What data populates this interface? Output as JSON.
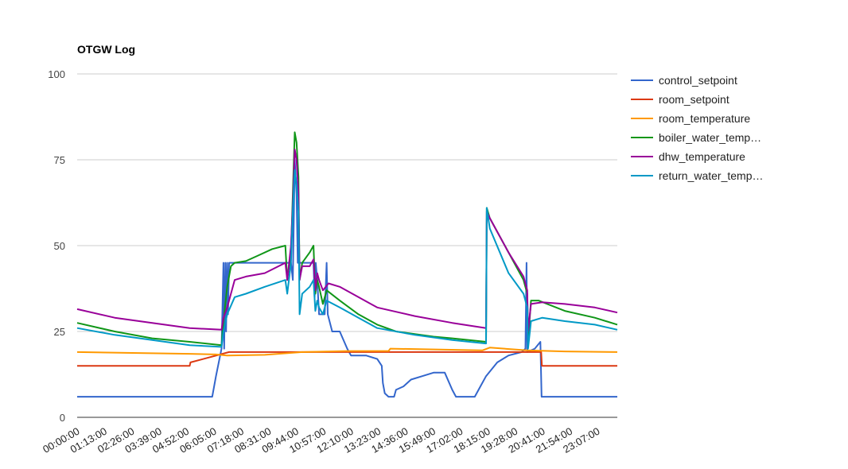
{
  "chart_data": {
    "type": "line",
    "title": "OTGW Log",
    "xlabel": "",
    "ylabel": "",
    "ylim": [
      0,
      100
    ],
    "yticks": [
      0,
      25,
      50,
      75,
      100
    ],
    "xlim": [
      0,
      1440
    ],
    "x_unit": "minutes since 00:00:00",
    "x_tick_labels": [
      "00:00:00",
      "01:13:00",
      "02:26:00",
      "03:39:00",
      "04:52:00",
      "06:05:00",
      "07:18:00",
      "08:31:00",
      "09:44:00",
      "10:57:00",
      "12:10:00",
      "13:23:00",
      "14:36:00",
      "15:49:00",
      "17:02:00",
      "18:15:00",
      "19:28:00",
      "20:41:00",
      "21:54:00",
      "23:07:00"
    ],
    "x_tick_values": [
      0,
      73,
      146,
      219,
      292,
      365,
      438,
      511,
      584,
      657,
      730,
      803,
      876,
      949,
      1022,
      1095,
      1168,
      1241,
      1314,
      1387
    ],
    "grid": true,
    "legend_position": "right",
    "series": [
      {
        "name": "control_setpoint",
        "color": "#3366cc",
        "points": [
          [
            0,
            6
          ],
          [
            360,
            6
          ],
          [
            370,
            12
          ],
          [
            385,
            20
          ],
          [
            390,
            45
          ],
          [
            392,
            20
          ],
          [
            395,
            45
          ],
          [
            397,
            25
          ],
          [
            400,
            45
          ],
          [
            402,
            30
          ],
          [
            405,
            45
          ],
          [
            420,
            45
          ],
          [
            430,
            45
          ],
          [
            500,
            45
          ],
          [
            560,
            45
          ],
          [
            570,
            45
          ],
          [
            575,
            40
          ],
          [
            578,
            60
          ],
          [
            580,
            75
          ],
          [
            585,
            65
          ],
          [
            588,
            45
          ],
          [
            630,
            45
          ],
          [
            633,
            35
          ],
          [
            636,
            45
          ],
          [
            640,
            40
          ],
          [
            645,
            30
          ],
          [
            660,
            30
          ],
          [
            665,
            45
          ],
          [
            668,
            30
          ],
          [
            680,
            25
          ],
          [
            700,
            25
          ],
          [
            720,
            20
          ],
          [
            730,
            18
          ],
          [
            770,
            18
          ],
          [
            800,
            17
          ],
          [
            812,
            15
          ],
          [
            815,
            10
          ],
          [
            820,
            7
          ],
          [
            830,
            6
          ],
          [
            845,
            6
          ],
          [
            850,
            8
          ],
          [
            870,
            9
          ],
          [
            890,
            11
          ],
          [
            920,
            12
          ],
          [
            950,
            13
          ],
          [
            980,
            13
          ],
          [
            1000,
            8
          ],
          [
            1010,
            6
          ],
          [
            1060,
            6
          ],
          [
            1075,
            9
          ],
          [
            1090,
            12
          ],
          [
            1120,
            16
          ],
          [
            1150,
            18
          ],
          [
            1185,
            19
          ],
          [
            1195,
            20
          ],
          [
            1198,
            45
          ],
          [
            1200,
            19
          ],
          [
            1220,
            20
          ],
          [
            1235,
            22
          ],
          [
            1238,
            6
          ],
          [
            1440,
            6
          ]
        ]
      },
      {
        "name": "room_setpoint",
        "color": "#dc3912",
        "points": [
          [
            0,
            15
          ],
          [
            300,
            15
          ],
          [
            302,
            16
          ],
          [
            405,
            19
          ],
          [
            1237,
            19
          ],
          [
            1239,
            15
          ],
          [
            1440,
            15
          ]
        ]
      },
      {
        "name": "room_temperature",
        "color": "#ff9900",
        "points": [
          [
            0,
            19
          ],
          [
            300,
            18.5
          ],
          [
            370,
            18.3
          ],
          [
            400,
            18
          ],
          [
            500,
            18.2
          ],
          [
            600,
            19
          ],
          [
            720,
            19.3
          ],
          [
            830,
            19.3
          ],
          [
            835,
            20
          ],
          [
            1080,
            19.5
          ],
          [
            1100,
            20.3
          ],
          [
            1200,
            19.5
          ],
          [
            1300,
            19.2
          ],
          [
            1440,
            19
          ]
        ]
      },
      {
        "name": "boiler_water_temperature",
        "color": "#109618",
        "points": [
          [
            0,
            27.5
          ],
          [
            100,
            25
          ],
          [
            200,
            23
          ],
          [
            300,
            22
          ],
          [
            385,
            21
          ],
          [
            390,
            28
          ],
          [
            400,
            38
          ],
          [
            410,
            44
          ],
          [
            420,
            45
          ],
          [
            450,
            45.5
          ],
          [
            480,
            47
          ],
          [
            520,
            49
          ],
          [
            555,
            50
          ],
          [
            560,
            40
          ],
          [
            570,
            48
          ],
          [
            575,
            65
          ],
          [
            580,
            83
          ],
          [
            585,
            80
          ],
          [
            590,
            70
          ],
          [
            593,
            40
          ],
          [
            600,
            45
          ],
          [
            620,
            48
          ],
          [
            630,
            50
          ],
          [
            635,
            36
          ],
          [
            640,
            40
          ],
          [
            645,
            38
          ],
          [
            655,
            33
          ],
          [
            665,
            37
          ],
          [
            700,
            34
          ],
          [
            750,
            30
          ],
          [
            800,
            27
          ],
          [
            850,
            25
          ],
          [
            950,
            23.5
          ],
          [
            1000,
            23
          ],
          [
            1090,
            22
          ],
          [
            1092,
            61
          ],
          [
            1100,
            58
          ],
          [
            1150,
            48
          ],
          [
            1190,
            40
          ],
          [
            1200,
            36
          ],
          [
            1202,
            22
          ],
          [
            1210,
            34
          ],
          [
            1230,
            34
          ],
          [
            1300,
            31
          ],
          [
            1380,
            29
          ],
          [
            1440,
            27
          ]
        ]
      },
      {
        "name": "dhw_temperature",
        "color": "#990099",
        "points": [
          [
            0,
            31.5
          ],
          [
            100,
            29
          ],
          [
            200,
            27.5
          ],
          [
            300,
            26
          ],
          [
            385,
            25.5
          ],
          [
            390,
            29
          ],
          [
            400,
            32
          ],
          [
            420,
            40
          ],
          [
            450,
            41
          ],
          [
            500,
            42
          ],
          [
            555,
            45
          ],
          [
            560,
            40
          ],
          [
            570,
            50
          ],
          [
            575,
            62
          ],
          [
            580,
            78
          ],
          [
            585,
            75
          ],
          [
            590,
            65
          ],
          [
            593,
            40
          ],
          [
            600,
            44
          ],
          [
            620,
            44
          ],
          [
            630,
            46
          ],
          [
            635,
            37
          ],
          [
            640,
            42
          ],
          [
            645,
            40
          ],
          [
            655,
            37
          ],
          [
            670,
            39
          ],
          [
            700,
            38
          ],
          [
            750,
            35
          ],
          [
            800,
            32
          ],
          [
            900,
            29.5
          ],
          [
            1000,
            27.5
          ],
          [
            1090,
            26
          ],
          [
            1092,
            60
          ],
          [
            1100,
            58
          ],
          [
            1150,
            48
          ],
          [
            1190,
            41
          ],
          [
            1200,
            37
          ],
          [
            1202,
            25
          ],
          [
            1210,
            33
          ],
          [
            1240,
            33.5
          ],
          [
            1300,
            33
          ],
          [
            1380,
            32
          ],
          [
            1440,
            30.5
          ]
        ]
      },
      {
        "name": "return_water_temperature",
        "color": "#0099c6",
        "points": [
          [
            0,
            26
          ],
          [
            100,
            24
          ],
          [
            200,
            22.5
          ],
          [
            300,
            21
          ],
          [
            385,
            20.5
          ],
          [
            390,
            25
          ],
          [
            400,
            30
          ],
          [
            420,
            35
          ],
          [
            450,
            36
          ],
          [
            500,
            38
          ],
          [
            555,
            40
          ],
          [
            560,
            36
          ],
          [
            570,
            45
          ],
          [
            575,
            60
          ],
          [
            580,
            72
          ],
          [
            585,
            68
          ],
          [
            590,
            60
          ],
          [
            593,
            30
          ],
          [
            600,
            36
          ],
          [
            620,
            38
          ],
          [
            630,
            40
          ],
          [
            635,
            31
          ],
          [
            640,
            34
          ],
          [
            645,
            32
          ],
          [
            655,
            30
          ],
          [
            665,
            34
          ],
          [
            700,
            32
          ],
          [
            750,
            29
          ],
          [
            800,
            26
          ],
          [
            900,
            24
          ],
          [
            1000,
            22.5
          ],
          [
            1090,
            21.5
          ],
          [
            1092,
            61
          ],
          [
            1100,
            55
          ],
          [
            1150,
            42
          ],
          [
            1190,
            36
          ],
          [
            1200,
            32
          ],
          [
            1202,
            20
          ],
          [
            1210,
            28
          ],
          [
            1240,
            29
          ],
          [
            1300,
            28
          ],
          [
            1380,
            27
          ],
          [
            1440,
            25.5
          ]
        ]
      }
    ],
    "legend_labels": [
      "control_setpoint",
      "room_setpoint",
      "room_temperature",
      "boiler_water_temp…",
      "dhw_temperature",
      "return_water_temp…"
    ]
  }
}
